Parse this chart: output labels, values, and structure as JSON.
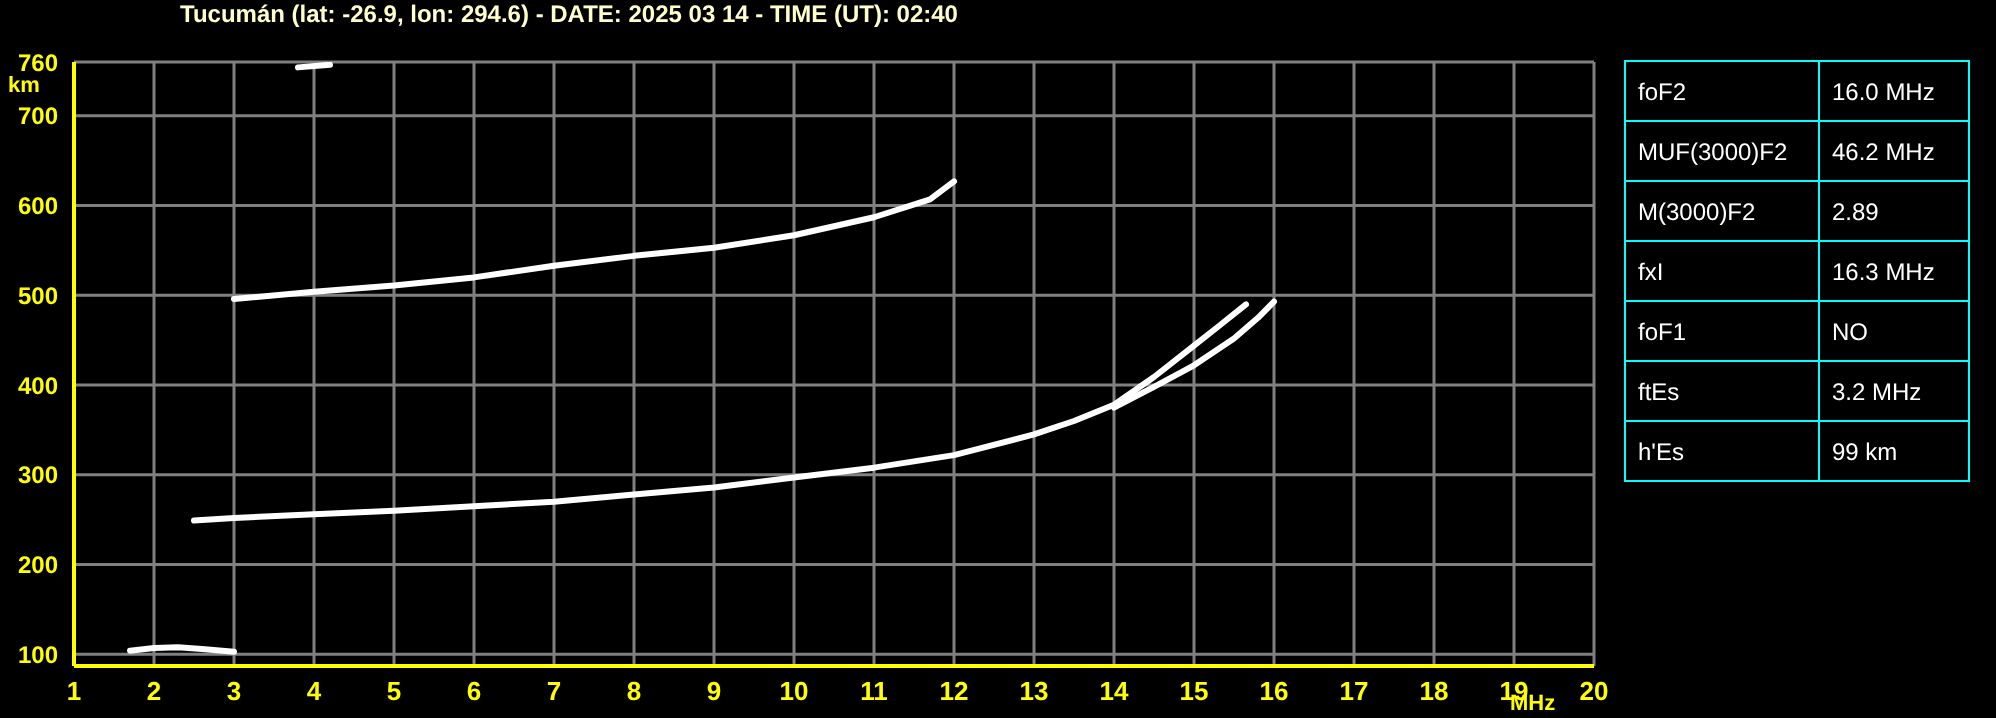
{
  "chart_data": [
    {
      "type": "line",
      "title": "Tucumán (lat: -26.9, lon: 294.6) - DATE: 2025 03 14 - TIME (UT): 02:40",
      "xlabel": "MHz",
      "ylabel": "km",
      "xlim": [
        1,
        20
      ],
      "ylim": [
        87,
        760
      ],
      "xticks": [
        1,
        2,
        3,
        4,
        5,
        6,
        7,
        8,
        9,
        10,
        11,
        12,
        13,
        14,
        15,
        16,
        17,
        18,
        19,
        20
      ],
      "yticks": [
        100,
        200,
        300,
        400,
        500,
        600,
        700,
        760
      ],
      "grid": true,
      "marker": "none",
      "line_style": "solid",
      "series": [
        {
          "color": "#ffffff",
          "x": [
            2.5,
            3,
            4,
            5,
            6,
            7,
            8,
            9,
            10,
            11,
            12,
            13,
            13.5,
            14,
            14.5,
            15,
            15.3,
            15.65
          ],
          "values": [
            249,
            252,
            256,
            260,
            265,
            270,
            278,
            286,
            297,
            308,
            322,
            345,
            360,
            378,
            409,
            444,
            465,
            490
          ]
        },
        {
          "color": "#ffffff",
          "x": [
            14,
            14.5,
            15,
            15.5,
            15.8,
            16
          ],
          "values": [
            375,
            398,
            422,
            452,
            475,
            493
          ]
        },
        {
          "color": "#ffffff",
          "x": [
            3,
            4,
            5,
            6,
            7,
            8,
            9,
            10,
            11,
            11.7,
            12
          ],
          "values": [
            496,
            504,
            511,
            520,
            533,
            544,
            553,
            567,
            587,
            607,
            627
          ]
        },
        {
          "color": "#ffffff",
          "x": [
            1.7,
            2,
            2.3,
            2.6,
            3
          ],
          "values": [
            104,
            107,
            108,
            106,
            103
          ]
        },
        {
          "color": "#ffffff",
          "x": [
            3.8,
            4.2
          ],
          "values": [
            754,
            757
          ]
        }
      ]
    },
    {
      "type": "other",
      "annotations": [
        "foF2",
        "16.0 MHz",
        "MUF(3000)F2",
        "46.2 MHz",
        "M(3000)F2",
        "2.89",
        "fxI",
        "16.3 MHz",
        "foF1",
        "NO",
        "ftEs",
        "3.2 MHz",
        "h'Es",
        "99 km"
      ]
    }
  ]
}
